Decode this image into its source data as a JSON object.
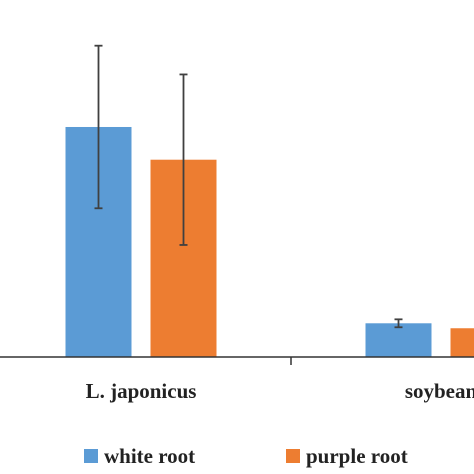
{
  "chart_data": {
    "type": "bar",
    "categories": [
      "L. japonicus",
      "soybean"
    ],
    "series": [
      {
        "name": "white root",
        "color": "#5B9BD5",
        "values": [
          2.32,
          0.34
        ],
        "errors": [
          0.82,
          0.04
        ]
      },
      {
        "name": "purple root",
        "color": "#ED7D31",
        "values": [
          1.99,
          0.29
        ],
        "errors": [
          0.86,
          0.0
        ]
      }
    ],
    "ylim": [
      0,
      3.5
    ],
    "title": "",
    "xlabel": "",
    "ylabel": "",
    "grid": false,
    "legend_position": "bottom"
  }
}
